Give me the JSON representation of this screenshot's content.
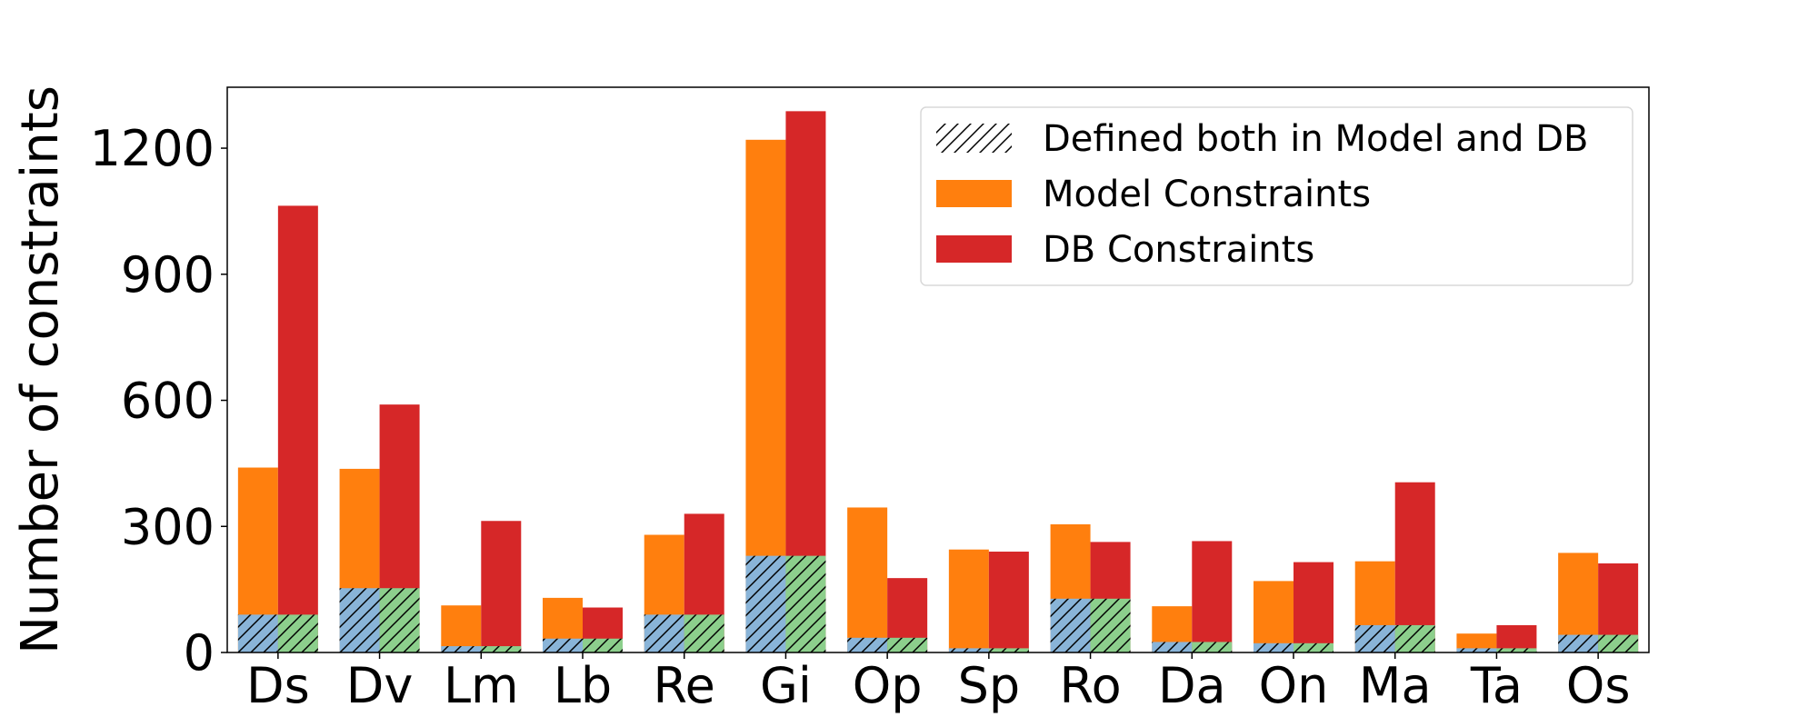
{
  "chart_data": {
    "type": "bar",
    "categories": [
      "Ds",
      "Dv",
      "Lm",
      "Lb",
      "Re",
      "Gi",
      "Op",
      "Sp",
      "Ro",
      "Da",
      "On",
      "Ma",
      "Ta",
      "Os"
    ],
    "series": [
      {
        "name": "Model Constraints",
        "values": [
          440,
          437,
          112,
          130,
          280,
          1220,
          345,
          245,
          305,
          110,
          170,
          217,
          45,
          237
        ],
        "color": "#ff7f0e"
      },
      {
        "name": "DB Constraints",
        "values": [
          1063,
          590,
          313,
          107,
          330,
          1288,
          177,
          240,
          263,
          265,
          215,
          405,
          65,
          212
        ],
        "color": "#d62728"
      }
    ],
    "overlap": {
      "name": "Defined both in Model and DB",
      "values": [
        90,
        153,
        15,
        33,
        90,
        230,
        35,
        10,
        128,
        25,
        22,
        65,
        10,
        42
      ],
      "model_color": "#89b4d8",
      "db_color": "#8ccf8c",
      "pattern": "hatch"
    },
    "title": "",
    "xlabel": "",
    "ylabel": "Number of constraints",
    "ylim": [
      0,
      1345
    ],
    "yticks": [
      0,
      300,
      600,
      900,
      1200
    ],
    "grid": false,
    "legend_position": "top-right"
  }
}
